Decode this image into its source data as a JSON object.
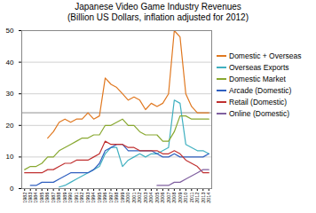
{
  "chart_data": {
    "type": "line",
    "title": "Japanese Video Game Industry Revenues\n(Billion US Dollars, inflation adjusted for 2012)",
    "x": [
      1982,
      1983,
      1984,
      1985,
      1986,
      1987,
      1988,
      1989,
      1990,
      1991,
      1992,
      1993,
      1994,
      1995,
      1996,
      1997,
      1998,
      1999,
      2000,
      2001,
      2002,
      2003,
      2004,
      2005,
      2006,
      2007,
      2008,
      2009,
      2010,
      2011,
      2012,
      2013,
      2014
    ],
    "series": [
      {
        "name": "Domestic + Overseas",
        "color": "#E07820",
        "values": [
          null,
          null,
          null,
          null,
          16,
          18,
          21,
          22,
          21,
          22,
          22,
          24,
          22,
          23,
          35,
          33,
          32,
          30,
          28,
          29,
          28,
          25,
          27,
          26,
          27,
          30,
          50,
          48,
          30,
          26,
          24,
          24,
          24
        ]
      },
      {
        "name": "Overseas Exports",
        "color": "#40B0C0",
        "values": [
          null,
          null,
          null,
          null,
          null,
          null,
          0.5,
          1,
          2,
          3,
          4,
          5,
          6,
          7,
          11,
          13,
          13,
          7,
          9,
          10,
          11,
          10,
          11,
          11,
          12,
          13,
          28,
          27,
          14,
          13,
          12,
          12,
          11
        ]
      },
      {
        "name": "Domestic Market",
        "color": "#88A830",
        "values": [
          6,
          7,
          7,
          8,
          10,
          10,
          12,
          13,
          14,
          15,
          16,
          16,
          17,
          17,
          20,
          20,
          21,
          22,
          20,
          20,
          18,
          17,
          17,
          17,
          15,
          15,
          18,
          23,
          23,
          22,
          22,
          22,
          22
        ]
      },
      {
        "name": "Arcade (Domestic)",
        "color": "#3060C0",
        "values": [
          null,
          1,
          1,
          2,
          2,
          2,
          3,
          4,
          5,
          5,
          5,
          5,
          6,
          8,
          12,
          13,
          14,
          14,
          12,
          12,
          12,
          12,
          12,
          11,
          10,
          10,
          11,
          10,
          10,
          10,
          10,
          10,
          11
        ]
      },
      {
        "name": "Retail (Domestic)",
        "color": "#C03030",
        "values": [
          5,
          5,
          5,
          5,
          6,
          6,
          7,
          8,
          8,
          9,
          9,
          9,
          10,
          11,
          15,
          14,
          14,
          14,
          13,
          13,
          12,
          12,
          12,
          12,
          11,
          11,
          12,
          11,
          9,
          8,
          7,
          5,
          5
        ]
      },
      {
        "name": "Online (Domestic)",
        "color": "#8060A0",
        "values": [
          null,
          null,
          null,
          null,
          null,
          null,
          null,
          null,
          null,
          null,
          null,
          null,
          null,
          null,
          null,
          null,
          null,
          null,
          null,
          null,
          null,
          null,
          null,
          1,
          1,
          1,
          2,
          2,
          3,
          4,
          5,
          6,
          6
        ]
      }
    ],
    "hline": {
      "y": 24,
      "color": "#909090"
    },
    "xlim": [
      1981.5,
      2014.5
    ],
    "xticks": [
      1982,
      1983,
      1984,
      1985,
      1986,
      1987,
      1988,
      1989,
      1990,
      1991,
      1992,
      1993,
      1994,
      1995,
      1996,
      1997,
      1998,
      1999,
      2000,
      2001,
      2002,
      2003,
      2004,
      2005,
      2006,
      2007,
      2008,
      2009,
      2010,
      2011,
      2012,
      2013,
      2014
    ],
    "ylim": [
      0,
      50
    ],
    "yticks": [
      0,
      10,
      20,
      30,
      40,
      50
    ],
    "grid": "y",
    "legend": "upper right"
  }
}
